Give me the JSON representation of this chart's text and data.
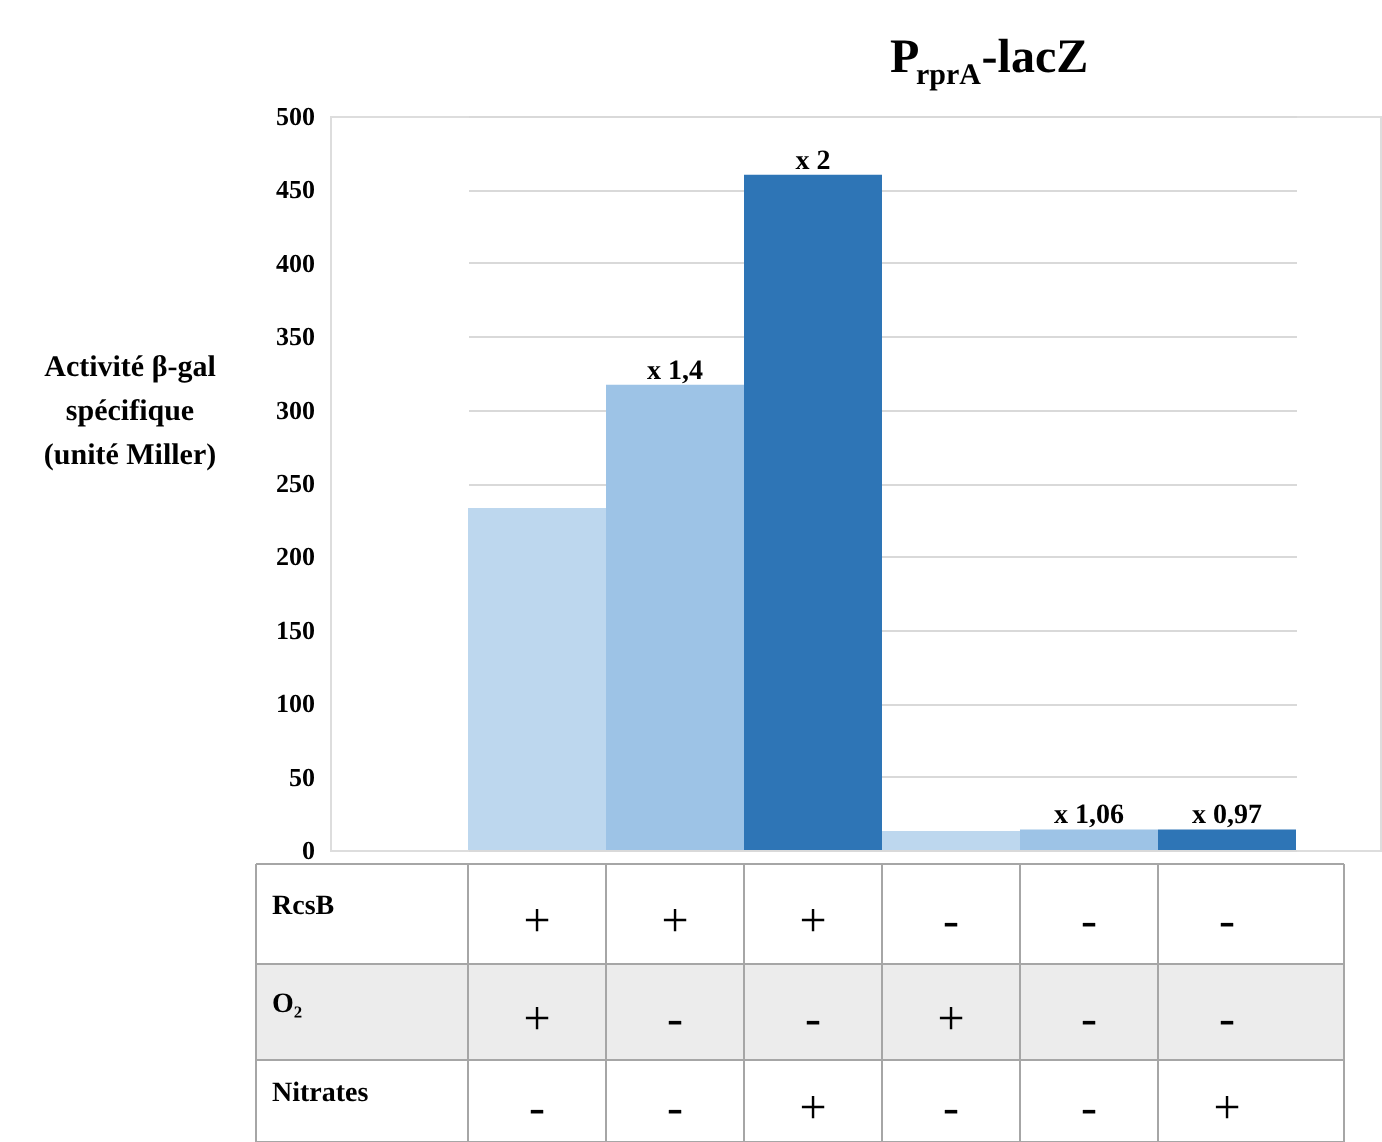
{
  "chart_data": {
    "type": "bar",
    "title": "P$_{rprA}$-lacZ",
    "ylabel": "Activité β-gal\nspécifique\n(unité Miller)",
    "categories": [
      null,
      null,
      null,
      null,
      null,
      null
    ],
    "values": [
      233,
      317,
      460,
      13,
      14,
      14
    ],
    "colors": [
      "#bdd7ee",
      "#9dc3e6",
      "#2e75b6",
      "#bdd7ee",
      "#9dc3e6",
      "#2e75b6"
    ],
    "value_labels": [
      null,
      "x 1,4",
      "x 2",
      null,
      "x 1,06",
      "x 0,97"
    ],
    "ylim": [
      0,
      500
    ],
    "yticks": [
      0,
      50,
      100,
      150,
      200,
      250,
      300,
      350,
      400,
      450,
      500
    ],
    "grid": "y",
    "annotations": [
      "RcsB",
      "+",
      "+",
      "+",
      "-",
      "-",
      "-",
      "O₂",
      "+",
      "-",
      "-",
      "+",
      "-",
      "-",
      "Nitrates",
      "-",
      "-",
      "+",
      "-",
      "-",
      "+"
    ]
  }
}
